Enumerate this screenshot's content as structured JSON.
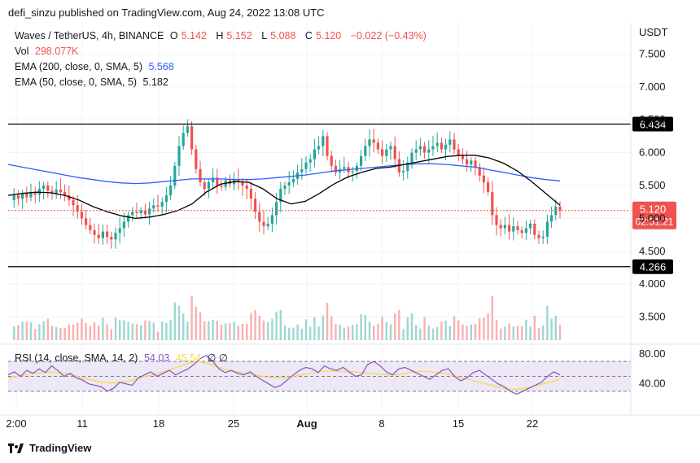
{
  "header": {
    "published": "defi_sinzu published on TradingView.com, Aug 24, 2022 13:08 UTC"
  },
  "legend": {
    "symbol": "Waves / TetherUS, 4h, BINANCE",
    "o_label": "O",
    "o_value": "5.142",
    "h_label": "H",
    "h_value": "5.152",
    "l_label": "L",
    "l_value": "5.088",
    "c_label": "C",
    "c_value": "5.120",
    "change": "−0.022 (−0.43%)",
    "vol_label": "Vol",
    "vol_value": "298.077K",
    "ema200_label": "EMA (200, close, 0, SMA, 5)",
    "ema200_value": "5.568",
    "ema50_label": "EMA (50, close, 0, SMA, 5)",
    "ema50_value": "5.182",
    "rsi_label": "RSI (14, close, SMA, 14, 2)",
    "rsi_value": "54.03",
    "rsi_ma_value": "45.54",
    "rsi_icons": "∅ ∅"
  },
  "colors": {
    "up": "#26a69a",
    "down": "#ef5350",
    "ema200": "#2962ff",
    "ema50": "#000000",
    "rsi": "#7e57c2",
    "rsi_ma": "#f6d94c",
    "rsi_band": "#ede7f6"
  },
  "footer": {
    "brand": "TradingView"
  },
  "chart_data": {
    "type": "candlestick",
    "price_axis": {
      "currency": "USDT",
      "ticks": [
        "7.500",
        "7.000",
        "6.500",
        "6.000",
        "5.500",
        "5.000",
        "4.500",
        "4.000",
        "3.500"
      ],
      "tick_values": [
        7.5,
        7.0,
        6.5,
        6.0,
        5.5,
        5.0,
        4.5,
        4.0,
        3.5
      ],
      "ylim": [
        3.05,
        7.95
      ]
    },
    "time_axis": {
      "labels": [
        "2:00",
        "11",
        "18",
        "25",
        "Aug",
        "8",
        "15",
        "22"
      ]
    },
    "horizontal_lines": [
      {
        "value": 6.434,
        "label": "6.434"
      },
      {
        "value": 4.266,
        "label": "4.266"
      }
    ],
    "last_price": {
      "value": 5.12,
      "label": "5.120",
      "countdown": "02:51:21"
    },
    "close_series": [
      5.28,
      5.35,
      5.3,
      5.38,
      5.32,
      5.4,
      5.36,
      5.45,
      5.5,
      5.42,
      5.38,
      5.44,
      5.4,
      5.35,
      5.28,
      5.2,
      5.1,
      5.0,
      4.9,
      4.82,
      4.75,
      4.7,
      4.8,
      4.72,
      4.68,
      4.78,
      4.85,
      4.95,
      5.05,
      5.1,
      5.08,
      5.12,
      5.06,
      5.15,
      5.2,
      5.18,
      5.25,
      5.35,
      5.5,
      5.8,
      6.1,
      6.3,
      6.4,
      6.05,
      5.75,
      5.55,
      5.45,
      5.55,
      5.62,
      5.5,
      5.48,
      5.58,
      5.52,
      5.6,
      5.55,
      5.5,
      5.45,
      5.3,
      5.1,
      4.95,
      4.88,
      4.92,
      5.05,
      5.25,
      5.45,
      5.5,
      5.55,
      5.6,
      5.7,
      5.75,
      5.85,
      5.9,
      6.05,
      6.1,
      6.25,
      5.95,
      5.8,
      5.7,
      5.75,
      5.78,
      5.7,
      5.72,
      5.8,
      5.95,
      6.1,
      6.2,
      6.15,
      6.05,
      5.95,
      6.05,
      6.1,
      5.9,
      5.7,
      5.72,
      5.85,
      6.0,
      6.05,
      6.1,
      6.0,
      6.05,
      6.1,
      6.15,
      6.05,
      6.12,
      6.2,
      6.05,
      5.95,
      5.9,
      5.82,
      5.88,
      5.78,
      5.65,
      5.55,
      5.4,
      5.05,
      4.9,
      4.85,
      4.9,
      4.8,
      4.88,
      4.82,
      4.78,
      4.85,
      4.92,
      4.75,
      4.7,
      4.72,
      4.95,
      5.05,
      5.18,
      5.12
    ],
    "ema200_series": [
      5.82,
      5.78,
      5.74,
      5.7,
      5.66,
      5.62,
      5.59,
      5.56,
      5.54,
      5.53,
      5.54,
      5.56,
      5.58,
      5.6,
      5.6,
      5.6,
      5.59,
      5.59,
      5.6,
      5.62,
      5.64,
      5.66,
      5.69,
      5.72,
      5.74,
      5.76,
      5.78,
      5.8,
      5.82,
      5.83,
      5.83,
      5.82,
      5.8,
      5.78,
      5.74,
      5.7,
      5.66,
      5.62,
      5.59,
      5.57
    ],
    "ema50_series": [
      5.35,
      5.38,
      5.4,
      5.39,
      5.35,
      5.28,
      5.18,
      5.1,
      5.04,
      5.0,
      5.02,
      5.06,
      5.12,
      5.22,
      5.4,
      5.52,
      5.56,
      5.55,
      5.45,
      5.3,
      5.22,
      5.26,
      5.38,
      5.52,
      5.63,
      5.7,
      5.76,
      5.78,
      5.82,
      5.86,
      5.9,
      5.94,
      5.96,
      5.96,
      5.92,
      5.84,
      5.72,
      5.56,
      5.38,
      5.2
    ],
    "rsi": {
      "ticks": [
        "80.00",
        "40.00"
      ],
      "tick_values": [
        80,
        40
      ],
      "ylim": [
        20,
        92
      ],
      "bands": [
        70,
        50,
        30
      ],
      "series": [
        52,
        56,
        50,
        58,
        54,
        60,
        55,
        64,
        58,
        50,
        54,
        48,
        45,
        40,
        38,
        36,
        30,
        34,
        42,
        40,
        38,
        48,
        52,
        56,
        50,
        54,
        58,
        52,
        56,
        60,
        66,
        74,
        78,
        70,
        60,
        55,
        58,
        54,
        52,
        56,
        50,
        45,
        40,
        35,
        38,
        45,
        52,
        58,
        62,
        60,
        55,
        64,
        60,
        58,
        62,
        56,
        50,
        52,
        66,
        70,
        64,
        56,
        52,
        60,
        62,
        58,
        54,
        50,
        46,
        52,
        58,
        60,
        50,
        44,
        48,
        55,
        58,
        52,
        46,
        40,
        36,
        30,
        26,
        30,
        34,
        38,
        42,
        50,
        56,
        52
      ],
      "ma_series": [
        48,
        50,
        52,
        54,
        55,
        56,
        55,
        53,
        50,
        47,
        44,
        42,
        41,
        42,
        44,
        47,
        50,
        53,
        56,
        60,
        64,
        68,
        70,
        68,
        64,
        60,
        57,
        55,
        53,
        51,
        49,
        48,
        48,
        50,
        52,
        54,
        56,
        57,
        57,
        56,
        56,
        55,
        54,
        53,
        52,
        52,
        54,
        56,
        57,
        56,
        55,
        53,
        50,
        47,
        44,
        41,
        38,
        35,
        33,
        33,
        34,
        37,
        40,
        43,
        46
      ]
    }
  }
}
